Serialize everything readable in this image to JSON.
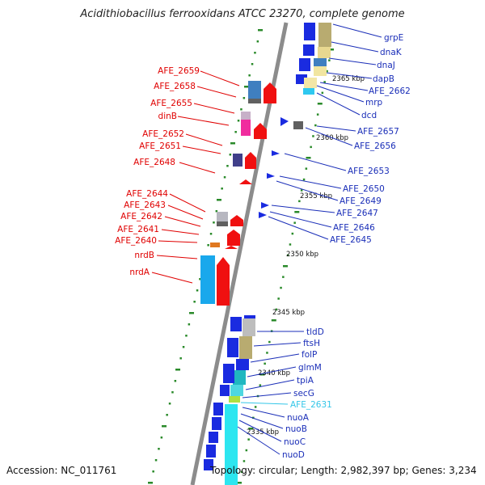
{
  "title": "Acidithiobacillus ferrooxidans ATCC 23270, complete genome",
  "accession": "Accession: NC_011761",
  "topology": "Topology: circular; Length: 2,982,397 bp; Genes: 3,234",
  "scale_labels": [
    "2365 kbp",
    "2360 kbp",
    "2355 kbp",
    "2350 kbp",
    "2345 kbp",
    "2340 kbp",
    "2335 kbp"
  ],
  "colors": {
    "forward_label": "#e00000",
    "reverse_label": "#1a2eb8",
    "highlight_label": "#33c6e8",
    "backbone": "#888888",
    "tick": "#2a8a2a"
  },
  "left_labels": [
    "AFE_2659",
    "AFE_2658",
    "AFE_2655",
    "dinB",
    "AFE_2652",
    "AFE_2651",
    "AFE_2648",
    "AFE_2644",
    "AFE_2643",
    "AFE_2642",
    "AFE_2641",
    "AFE_2640",
    "nrdB",
    "nrdA"
  ],
  "right_labels": [
    "grpE",
    "dnaK",
    "dnaJ",
    "dapB",
    "AFE_2662",
    "mrp",
    "dcd",
    "AFE_2657",
    "AFE_2656",
    "AFE_2653",
    "AFE_2650",
    "AFE_2649",
    "AFE_2647",
    "AFE_2646",
    "AFE_2645",
    "tldD",
    "ftsH",
    "folP",
    "glmM",
    "tpiA",
    "secG",
    "AFE_2631",
    "nuoA",
    "nuoB",
    "nuoC",
    "nuoD"
  ]
}
